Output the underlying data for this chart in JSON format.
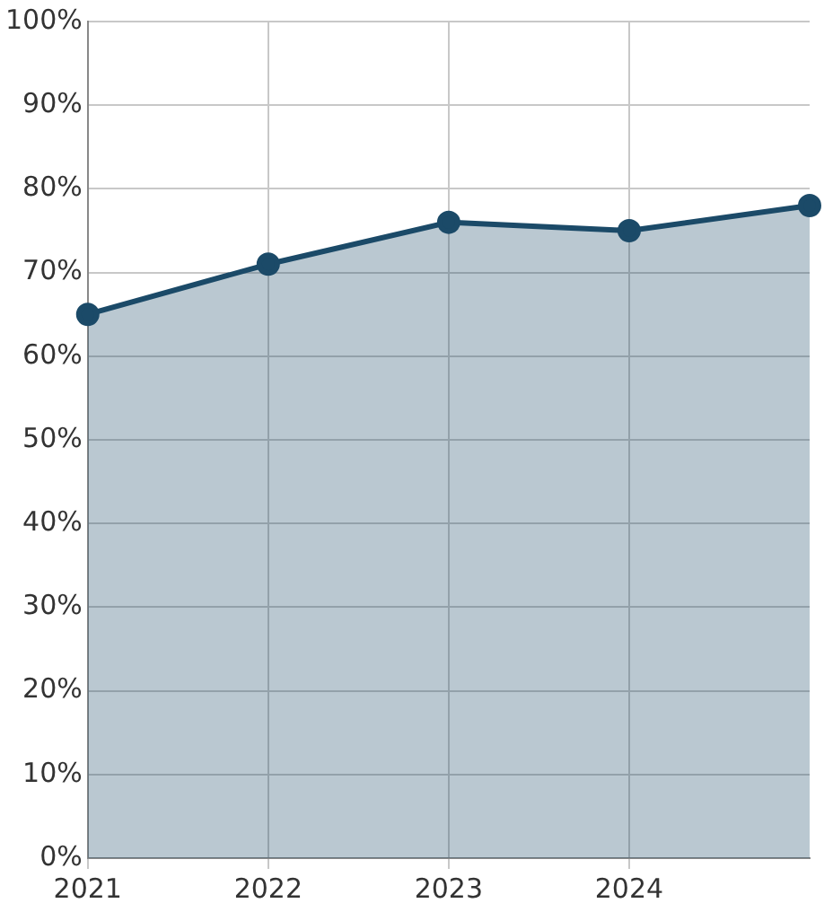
{
  "chart_data": {
    "type": "area",
    "x": [
      2021,
      2022,
      2023,
      2024,
      2025
    ],
    "series": [
      {
        "color": "#1b4a68",
        "values": [
          65,
          71,
          76,
          75,
          78
        ]
      }
    ],
    "xlim": [
      2021,
      2025
    ],
    "xticks": [
      2021,
      2022,
      2023,
      2024
    ],
    "ylim": [
      0,
      100
    ],
    "yticks": [
      {
        "value": 0,
        "label": "0%"
      },
      {
        "value": 10,
        "label": "10%"
      },
      {
        "value": 20,
        "label": "20%"
      },
      {
        "value": 30,
        "label": "30%"
      },
      {
        "value": 40,
        "label": "40%"
      },
      {
        "value": 50,
        "label": "50%"
      },
      {
        "value": 60,
        "label": "60%"
      },
      {
        "value": 70,
        "label": "70%"
      },
      {
        "value": 80,
        "label": "80%"
      },
      {
        "value": 90,
        "label": "90%"
      },
      {
        "value": 100,
        "label": "100%"
      }
    ],
    "grid": true,
    "marker": "circle",
    "legend": false
  }
}
